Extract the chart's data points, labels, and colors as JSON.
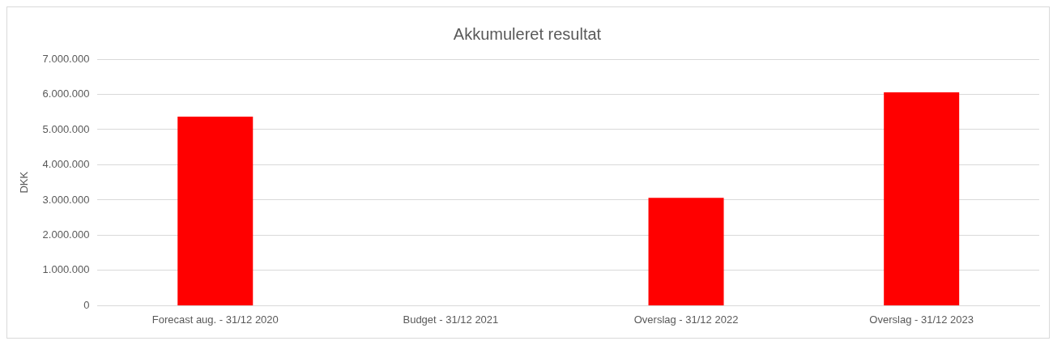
{
  "chart_data": {
    "type": "bar",
    "title": "Akkumuleret resultat",
    "ylabel": "DKK",
    "categories": [
      "Forecast aug. - 31/12 2020",
      "Budget - 31/12 2021",
      "Overslag - 31/12 2022",
      "Overslag - 31/12 2023"
    ],
    "values": [
      5370000,
      null,
      3060000,
      6060000
    ],
    "color": "#ff0000",
    "ylim": [
      0,
      7000000
    ],
    "yticks": [
      {
        "value": 0,
        "label": "0"
      },
      {
        "value": 1000000,
        "label": "1.000.000"
      },
      {
        "value": 2000000,
        "label": "2.000.000"
      },
      {
        "value": 3000000,
        "label": "3.000.000"
      },
      {
        "value": 4000000,
        "label": "4.000.000"
      },
      {
        "value": 5000000,
        "label": "5.000.000"
      },
      {
        "value": 6000000,
        "label": "6.000.000"
      },
      {
        "value": 7000000,
        "label": "7.000.000"
      }
    ],
    "grid": "y"
  }
}
